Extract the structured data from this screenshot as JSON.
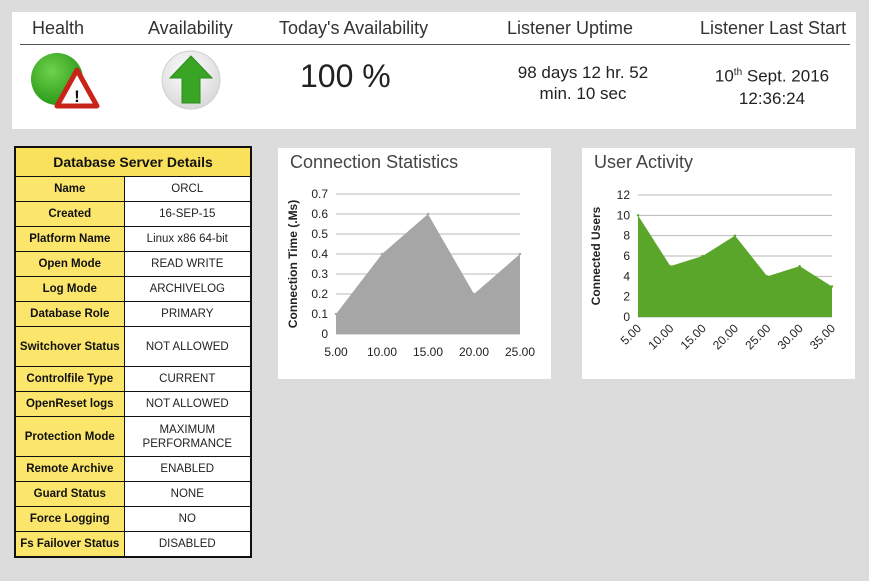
{
  "header": {
    "health_label": "Health",
    "availability_label": "Availability",
    "todays_availability_label": "Today's Availability",
    "listener_uptime_label": "Listener Uptime",
    "listener_last_start_label": "Listener Last Start",
    "todays_availability_value": "100 %",
    "uptime_line1": "98 days 12 hr. 52",
    "uptime_line2": "min. 10 sec",
    "last_start_day": "10",
    "last_start_suffix": "th",
    "last_start_rest": " Sept. 2016",
    "last_start_time": "12:36:24",
    "health_icon": "warning-icon",
    "availability_icon": "up-arrow-icon"
  },
  "db_details": {
    "title": "Database Server Details",
    "rows": [
      {
        "key": "Name",
        "value": "ORCL"
      },
      {
        "key": "Created",
        "value": "16-SEP-15"
      },
      {
        "key": "Platform Name",
        "value": "Linux x86 64-bit"
      },
      {
        "key": "Open Mode",
        "value": "READ WRITE"
      },
      {
        "key": "Log Mode",
        "value": "ARCHIVELOG"
      },
      {
        "key": "Database Role",
        "value": "PRIMARY"
      },
      {
        "key": "Switchover Status",
        "value": "NOT ALLOWED"
      },
      {
        "key": "Controlfile Type",
        "value": "CURRENT"
      },
      {
        "key": "OpenReset logs",
        "value": "NOT ALLOWED"
      },
      {
        "key": "Protection Mode",
        "value": "MAXIMUM PERFORMANCE"
      },
      {
        "key": "Remote Archive",
        "value": "ENABLED"
      },
      {
        "key": "Guard Status",
        "value": "NONE"
      },
      {
        "key": "Force Logging",
        "value": "NO"
      },
      {
        "key": "Fs Failover Status",
        "value": "DISABLED"
      }
    ]
  },
  "chart_data": [
    {
      "type": "area",
      "title": "Connection Statistics",
      "xlabel": "",
      "ylabel": "Connection Time (.Ms)",
      "x": [
        5,
        10,
        15,
        20,
        25
      ],
      "x_tick_labels": [
        "5.00",
        "10.00",
        "15.00",
        "20.00",
        "25.00"
      ],
      "values": [
        0.1,
        0.4,
        0.6,
        0.2,
        0.4
      ],
      "y_ticks": [
        "0",
        "0.1",
        "0.2",
        "0.3",
        "0.4",
        "0.5",
        "0.6",
        "0.7"
      ],
      "ylim": [
        0,
        0.7
      ],
      "grid": true,
      "color": "#a6a6a6"
    },
    {
      "type": "area",
      "title": "User Activity",
      "xlabel": "",
      "ylabel": "Connected Users",
      "x": [
        5,
        10,
        15,
        20,
        25,
        30,
        35
      ],
      "x_tick_labels": [
        "5.00",
        "10.00",
        "15.00",
        "20.00",
        "25.00",
        "30.00",
        "35.00"
      ],
      "values": [
        10,
        5,
        6,
        8,
        4,
        5,
        3
      ],
      "y_ticks": [
        "0",
        "2",
        "4",
        "6",
        "8",
        "10",
        "12"
      ],
      "ylim": [
        0,
        12
      ],
      "grid": true,
      "color": "#5aa62a"
    }
  ]
}
